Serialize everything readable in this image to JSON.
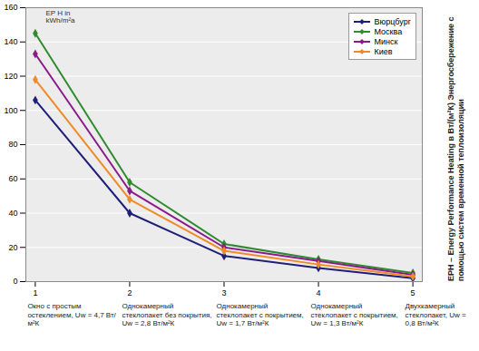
{
  "chart_data": {
    "type": "line",
    "ylabel": "EPH – Energy Performance Heating в Вт/(м²К) Энергосбережение с помощью систем временной теплоизоляции",
    "annotations": [
      "EP H in\nkWh/m²a"
    ],
    "category_descriptions": [
      "Окно с простым остеклением, Uw = 4,7 Вт/м²К",
      "Однокамерный стеклопакет без покрытия, Uw = 2,8 Вт/м²К",
      "Однокамерный стеклопакет с покрытием, Uw = 1,7 Вт/м²К",
      "Однокамерный стеклопакет с покрытием, Uw = 1,3 Вт/м²К",
      "Двухкамерный стеклопакет, Uw = 0,8 Вт/м²К"
    ],
    "x": [
      1,
      2,
      3,
      4,
      5
    ],
    "series": [
      {
        "name": "Вюрцбург",
        "color": "#1f1f78",
        "values": [
          106,
          40,
          15,
          8,
          2
        ]
      },
      {
        "name": "Москва",
        "color": "#2e8b2e",
        "values": [
          145,
          58,
          22,
          13,
          5
        ]
      },
      {
        "name": "Минск",
        "color": "#8b1a8b",
        "values": [
          133,
          53,
          20,
          12,
          4
        ]
      },
      {
        "name": "Киев",
        "color": "#f08a24",
        "values": [
          118,
          48,
          18,
          10,
          3
        ]
      }
    ],
    "xlim": [
      0.9,
      5.1
    ],
    "xticks": [
      1,
      2,
      3,
      4,
      5
    ],
    "ylim": [
      0,
      160
    ],
    "yticks": [
      0,
      20,
      40,
      60,
      80,
      100,
      120,
      140,
      160
    ],
    "grid": true,
    "legend": "top-right",
    "marker": "diamond"
  }
}
